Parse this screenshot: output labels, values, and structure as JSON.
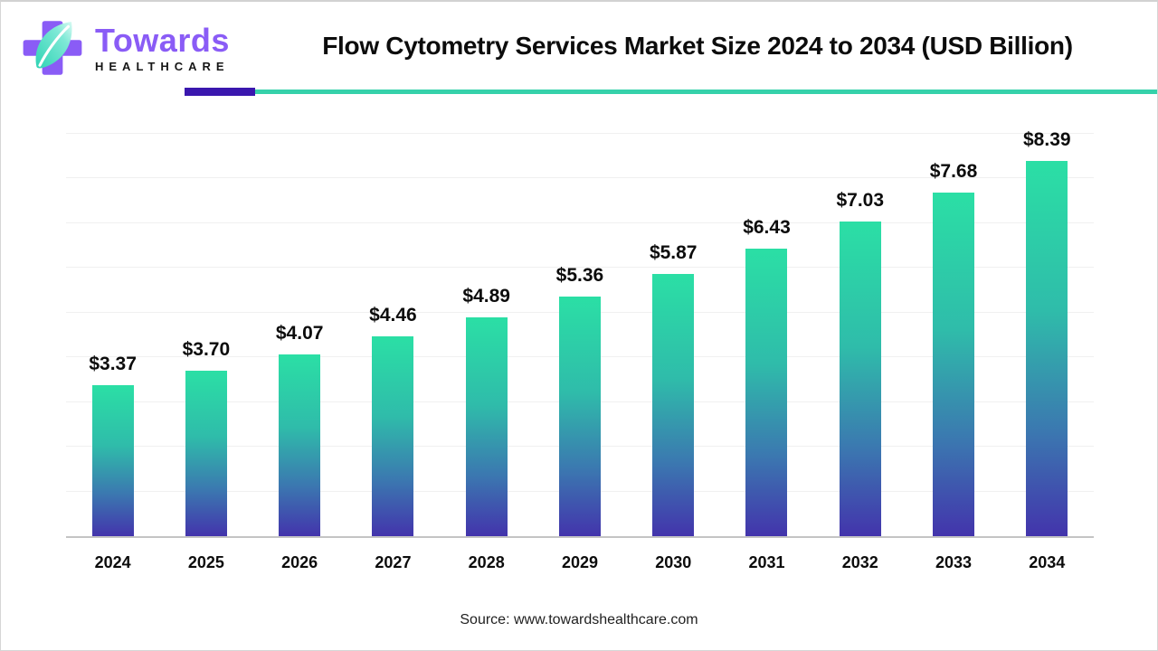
{
  "header": {
    "brand_name": "Towards",
    "brand_sub": "HEALTHCARE",
    "title": "Flow Cytometry Services Market Size 2024 to 2034 (USD Billion)"
  },
  "icons": {
    "logo": "medical-cross-leaf-icon"
  },
  "colors": {
    "brand_purple": "#8a5cf6",
    "leaf_teal": "#35d8b9",
    "divider_purple": "#3a17ae",
    "divider_teal": "#36d1aa",
    "bar_gradient_top": "#2bdfa5",
    "bar_gradient_mid": "#3b78b0",
    "bar_gradient_bottom": "#4334ac",
    "gridline": "#f0f0f0",
    "axis_line": "#c4c4c4",
    "text": "#0c0c0c"
  },
  "chart_data": {
    "type": "bar",
    "title": "Flow Cytometry Services Market Size 2024 to 2034 (USD Billion)",
    "categories": [
      "2024",
      "2025",
      "2026",
      "2027",
      "2028",
      "2029",
      "2030",
      "2031",
      "2032",
      "2033",
      "2034"
    ],
    "values": [
      3.37,
      3.7,
      4.07,
      4.46,
      4.89,
      5.36,
      5.87,
      6.43,
      7.03,
      7.68,
      8.39
    ],
    "value_labels": [
      "$3.37",
      "$3.70",
      "$4.07",
      "$4.46",
      "$4.89",
      "$5.36",
      "$5.87",
      "$6.43",
      "$7.03",
      "$7.68",
      "$8.39"
    ],
    "unit": "USD Billion",
    "xlabel": "",
    "ylabel": "",
    "ylim": [
      0,
      9.1
    ],
    "grid": "horizontal",
    "gridline_step": 1,
    "legend": "none"
  },
  "footer": {
    "source": "Source: www.towardshealthcare.com"
  }
}
